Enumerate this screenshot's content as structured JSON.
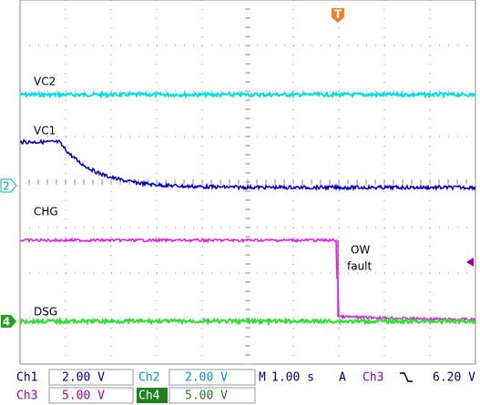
{
  "traces": [
    {
      "label": "VC2"
    },
    {
      "label": "VC1"
    },
    {
      "label": "CHG"
    },
    {
      "label": "DSG"
    }
  ],
  "annotation": [
    "OW",
    "fault"
  ],
  "markers": {
    "trigger": "T",
    "ch2": "2",
    "ch4": "4"
  },
  "status": {
    "ch1": {
      "name": "Ch1",
      "scale": "2.00 V"
    },
    "ch2": {
      "name": "Ch2",
      "scale": "2.00 V"
    },
    "ch3": {
      "name": "Ch3",
      "scale": "5.00 V"
    },
    "ch4": {
      "name": "Ch4",
      "scale": "5.00 V"
    },
    "time": {
      "label": "M",
      "value": "1.00 s"
    },
    "trig": {
      "label": "A",
      "source": "Ch3",
      "level": "6.20 V"
    }
  }
}
